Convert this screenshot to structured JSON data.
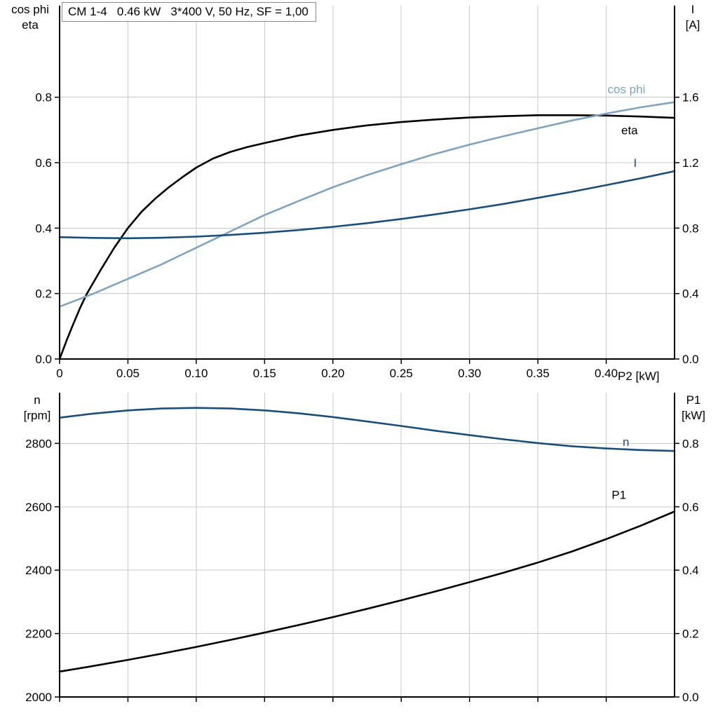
{
  "theme": {
    "background": "#ffffff",
    "grid_color": "#c8c8c8",
    "axis_color": "#000000",
    "eta_color": "#000000",
    "cos_phi_color": "#7ea4c4",
    "current_color": "#1a4e7a",
    "speed_color": "#1a4e7a",
    "p1_color": "#000000"
  },
  "chart_data": [
    {
      "type": "line",
      "title": "CM 1-4   0.46 kW   3*400 V, 50 Hz, SF = 1,00",
      "xlabel": "P2 [kW]",
      "xlim": [
        0,
        0.45
      ],
      "x_ticks": [
        0,
        0.05,
        0.1,
        0.15,
        0.2,
        0.25,
        0.3,
        0.35,
        0.4
      ],
      "x_tick_labels": [
        "0",
        "0.05",
        "0.10",
        "0.15",
        "0.20",
        "0.25",
        "0.30",
        "0.35",
        "0.40"
      ],
      "grid": true,
      "left_axis": {
        "title_lines": [
          "cos phi",
          "eta"
        ],
        "lim": [
          0,
          1.08
        ],
        "ticks": [
          0,
          0.2,
          0.4,
          0.6,
          0.8
        ],
        "tick_labels": [
          "0.0",
          "0.2",
          "0.4",
          "0.6",
          "0.8"
        ]
      },
      "right_axis": {
        "title_lines": [
          "I",
          "[A]"
        ],
        "lim": [
          0,
          2.16
        ],
        "ticks": [
          0,
          0.4,
          0.8,
          1.2,
          1.6
        ],
        "tick_labels": [
          "0.0",
          "0.4",
          "0.8",
          "1.2",
          "1.6"
        ]
      },
      "series": [
        {
          "name": "eta",
          "axis": "left",
          "color": "#000000",
          "x": [
            0,
            0.005,
            0.01,
            0.015,
            0.02,
            0.03,
            0.04,
            0.05,
            0.06,
            0.07,
            0.08,
            0.09,
            0.1,
            0.1125,
            0.125,
            0.1375,
            0.15,
            0.175,
            0.2,
            0.225,
            0.25,
            0.275,
            0.3,
            0.325,
            0.35,
            0.375,
            0.4,
            0.425,
            0.45
          ],
          "values": [
            0,
            0.055,
            0.107,
            0.156,
            0.2,
            0.272,
            0.34,
            0.4,
            0.45,
            0.49,
            0.525,
            0.556,
            0.585,
            0.613,
            0.633,
            0.648,
            0.66,
            0.683,
            0.7,
            0.714,
            0.724,
            0.732,
            0.738,
            0.742,
            0.745,
            0.745,
            0.744,
            0.741,
            0.737
          ]
        },
        {
          "name": "cos phi",
          "axis": "left",
          "color": "#7ea4c4",
          "x": [
            0,
            0.025,
            0.05,
            0.075,
            0.1,
            0.125,
            0.15,
            0.175,
            0.2,
            0.225,
            0.25,
            0.275,
            0.3,
            0.325,
            0.35,
            0.375,
            0.4,
            0.425,
            0.45
          ],
          "values": [
            0.16,
            0.2,
            0.245,
            0.29,
            0.34,
            0.39,
            0.44,
            0.483,
            0.525,
            0.562,
            0.595,
            0.627,
            0.655,
            0.681,
            0.705,
            0.729,
            0.75,
            0.769,
            0.785
          ]
        },
        {
          "name": "I",
          "axis": "right",
          "color": "#1a4e7a",
          "x": [
            0,
            0.025,
            0.05,
            0.075,
            0.1,
            0.125,
            0.15,
            0.175,
            0.2,
            0.225,
            0.25,
            0.275,
            0.3,
            0.325,
            0.35,
            0.375,
            0.4,
            0.425,
            0.45
          ],
          "values": [
            0.745,
            0.74,
            0.738,
            0.741,
            0.748,
            0.758,
            0.772,
            0.788,
            0.808,
            0.83,
            0.856,
            0.884,
            0.915,
            0.948,
            0.985,
            1.022,
            1.063,
            1.104,
            1.148
          ]
        }
      ],
      "annotations": [
        {
          "text": "cos phi",
          "x": 0.401,
          "y": 0.825,
          "axis": "left",
          "color": "#7ea4c4"
        },
        {
          "text": "eta",
          "x": 0.411,
          "y": 0.7,
          "axis": "left",
          "color": "#000000"
        },
        {
          "text": "I",
          "x": 0.42,
          "y": 1.2,
          "axis": "right",
          "color": "#1a4e7a"
        }
      ]
    },
    {
      "type": "line",
      "title": "",
      "xlabel": "",
      "xlim": [
        0,
        0.45
      ],
      "x_ticks": [
        0,
        0.05,
        0.1,
        0.15,
        0.2,
        0.25,
        0.3,
        0.35,
        0.4
      ],
      "x_tick_labels": null,
      "grid": true,
      "left_axis": {
        "title_lines": [
          "n",
          "[rpm]"
        ],
        "lim": [
          2000,
          2960
        ],
        "ticks": [
          2000,
          2200,
          2400,
          2600,
          2800
        ],
        "tick_labels": [
          "2000",
          "2200",
          "2400",
          "2600",
          "2800"
        ]
      },
      "right_axis": {
        "title_lines": [
          "P1",
          "[kW]"
        ],
        "lim": [
          0,
          0.96
        ],
        "ticks": [
          0,
          0.2,
          0.4,
          0.6,
          0.8
        ],
        "tick_labels": [
          "0.0",
          "0.2",
          "0.4",
          "0.6",
          "0.8"
        ]
      },
      "series": [
        {
          "name": "n",
          "axis": "left",
          "color": "#1a4e7a",
          "x": [
            0,
            0.025,
            0.05,
            0.075,
            0.1,
            0.125,
            0.15,
            0.175,
            0.2,
            0.225,
            0.25,
            0.275,
            0.3,
            0.325,
            0.35,
            0.375,
            0.4,
            0.425,
            0.45
          ],
          "values": [
            2881,
            2894,
            2904,
            2910,
            2912,
            2910,
            2904,
            2895,
            2883,
            2869,
            2855,
            2840,
            2826,
            2813,
            2801,
            2791,
            2784,
            2779,
            2776
          ]
        },
        {
          "name": "P1",
          "axis": "right",
          "color": "#000000",
          "x": [
            0,
            0.025,
            0.05,
            0.075,
            0.1,
            0.125,
            0.15,
            0.175,
            0.2,
            0.225,
            0.25,
            0.275,
            0.3,
            0.325,
            0.35,
            0.375,
            0.4,
            0.425,
            0.45
          ],
          "values": [
            0.08,
            0.098,
            0.117,
            0.137,
            0.158,
            0.18,
            0.203,
            0.227,
            0.252,
            0.278,
            0.305,
            0.333,
            0.362,
            0.392,
            0.424,
            0.459,
            0.498,
            0.54,
            0.585
          ]
        }
      ],
      "annotations": [
        {
          "text": "n",
          "x": 0.412,
          "y": 2805,
          "axis": "left",
          "color": "#1a4e7a"
        },
        {
          "text": "P1",
          "x": 0.404,
          "y": 0.638,
          "axis": "right",
          "color": "#000000"
        }
      ]
    }
  ]
}
